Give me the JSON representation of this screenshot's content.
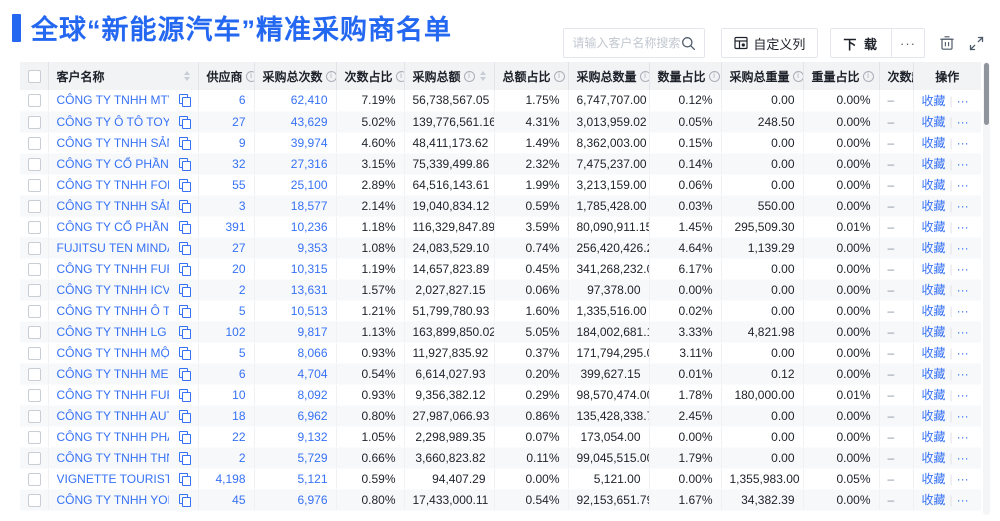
{
  "page": {
    "title": "全球“新能源汽车”精准采购商名单",
    "accent_color": "#2468f2",
    "link_color": "#3671f5"
  },
  "toolbar": {
    "search_placeholder": "请输入客户名称搜索",
    "search_icon": "magnifier-icon",
    "customize_columns_label": "自定义列",
    "customize_columns_icon": "column-settings-icon",
    "download_label": "下 载",
    "more_label": "···",
    "trash_icon": "trash-icon",
    "fullscreen_icon": "fullscreen-expand-icon"
  },
  "table": {
    "columns": [
      {
        "label": "",
        "type": "checkbox"
      },
      {
        "label": "客户名称",
        "info": false,
        "sort": true
      },
      {
        "label": "供应商",
        "info": true,
        "sort": true
      },
      {
        "label": "采购总次数",
        "info": true,
        "sort": true
      },
      {
        "label": "次数占比",
        "info": true,
        "sort": true
      },
      {
        "label": "采购总额",
        "info": true,
        "sort": true
      },
      {
        "label": "总额占比",
        "info": true,
        "sort": true
      },
      {
        "label": "采购总数量",
        "info": true,
        "sort": true
      },
      {
        "label": "数量占比",
        "info": true,
        "sort": true
      },
      {
        "label": "采购总重量",
        "info": true,
        "sort": true
      },
      {
        "label": "重量占比",
        "info": true,
        "sort": true
      },
      {
        "label": "次数趋势",
        "info": false,
        "sort": false
      },
      {
        "label": "操作",
        "info": false,
        "sort": false
      }
    ],
    "actions": {
      "favorite_label": "收藏",
      "more_label": "···"
    },
    "rows": [
      {
        "name": "CÔNG TY TNHH MTV SẢN XUẤ...",
        "suppliers": "6",
        "purchase_count": "62,410",
        "count_pct": "7.19%",
        "amount": "56,738,567.05",
        "amount_pct": "1.75%",
        "quantity": "6,747,707.00",
        "quantity_pct": "0.12%",
        "weight": "0.00",
        "weight_pct": "0.00%",
        "trend": "–"
      },
      {
        "name": "CÔNG TY Ô TÔ TOYOTA VIỆT ...",
        "suppliers": "27",
        "purchase_count": "43,629",
        "count_pct": "5.02%",
        "amount": "139,776,561.16",
        "amount_pct": "4.31%",
        "quantity": "3,013,959.02",
        "quantity_pct": "0.05%",
        "weight": "248.50",
        "weight_pct": "0.00%",
        "trend": "–"
      },
      {
        "name": "CÔNG TY TNHH SẢN XUẤT VÀ ...",
        "suppliers": "9",
        "purchase_count": "39,974",
        "count_pct": "4.60%",
        "amount": "48,411,173.62",
        "amount_pct": "1.49%",
        "quantity": "8,362,003.00",
        "quantity_pct": "0.15%",
        "weight": "0.00",
        "weight_pct": "0.00%",
        "trend": "–"
      },
      {
        "name": "CÔNG TY CỔ PHẦN SẢN XUẤT...",
        "suppliers": "32",
        "purchase_count": "27,316",
        "count_pct": "3.15%",
        "amount": "75,339,499.86",
        "amount_pct": "2.32%",
        "quantity": "7,475,237.00",
        "quantity_pct": "0.14%",
        "weight": "0.00",
        "weight_pct": "0.00%",
        "trend": "–"
      },
      {
        "name": "CÔNG TY TNHH FORD VIỆT NAM",
        "suppliers": "55",
        "purchase_count": "25,100",
        "count_pct": "2.89%",
        "amount": "64,516,143.61",
        "amount_pct": "1.99%",
        "quantity": "3,213,159.00",
        "quantity_pct": "0.06%",
        "weight": "0.00",
        "weight_pct": "0.00%",
        "trend": "–"
      },
      {
        "name": "CÔNG TY TNHH SẢN XUẤT VÀ ...",
        "suppliers": "3",
        "purchase_count": "18,577",
        "count_pct": "2.14%",
        "amount": "19,040,834.12",
        "amount_pct": "0.59%",
        "quantity": "1,785,428.00",
        "quantity_pct": "0.03%",
        "weight": "550.00",
        "weight_pct": "0.00%",
        "trend": "–"
      },
      {
        "name": "CÔNG TY CỔ PHẦN SẢN XUẤT...",
        "suppliers": "391",
        "purchase_count": "10,236",
        "count_pct": "1.18%",
        "amount": "116,329,847.89",
        "amount_pct": "3.59%",
        "quantity": "80,090,911.15",
        "quantity_pct": "1.45%",
        "weight": "295,509.30",
        "weight_pct": "0.01%",
        "trend": "–"
      },
      {
        "name": "FUJITSU TEN MINDA INDIA PVT...",
        "suppliers": "27",
        "purchase_count": "9,353",
        "count_pct": "1.08%",
        "amount": "24,083,529.10",
        "amount_pct": "0.74%",
        "quantity": "256,420,426.29",
        "quantity_pct": "4.64%",
        "weight": "1,139.29",
        "weight_pct": "0.00%",
        "trend": "–"
      },
      {
        "name": "CÔNG TY TNHH FURUKAWA A...",
        "suppliers": "20",
        "purchase_count": "10,315",
        "count_pct": "1.19%",
        "amount": "14,657,823.89",
        "amount_pct": "0.45%",
        "quantity": "341,268,232.00",
        "quantity_pct": "6.17%",
        "weight": "0.00",
        "weight_pct": "0.00%",
        "trend": "–"
      },
      {
        "name": "CÔNG TY TNHH ICV",
        "suppliers": "2",
        "purchase_count": "13,631",
        "count_pct": "1.57%",
        "amount": "2,027,827.15",
        "amount_pct": "0.06%",
        "quantity": "97,378.00",
        "quantity_pct": "0.00%",
        "weight": "0.00",
        "weight_pct": "0.00%",
        "trend": "–"
      },
      {
        "name": "CÔNG TY TNHH Ô TÔ MITSUBI...",
        "suppliers": "5",
        "purchase_count": "10,513",
        "count_pct": "1.21%",
        "amount": "51,799,780.93",
        "amount_pct": "1.60%",
        "quantity": "1,335,516.00",
        "quantity_pct": "0.02%",
        "weight": "0.00",
        "weight_pct": "0.00%",
        "trend": "–"
      },
      {
        "name": "CÔNG TY TNHH LG ELECTRON...",
        "suppliers": "102",
        "purchase_count": "9,817",
        "count_pct": "1.13%",
        "amount": "163,899,850.02",
        "amount_pct": "5.05%",
        "quantity": "184,002,681.15",
        "quantity_pct": "3.33%",
        "weight": "4,821.98",
        "weight_pct": "0.00%",
        "trend": "–"
      },
      {
        "name": "CÔNG TY TNHH MỘT THÀNH V...",
        "suppliers": "5",
        "purchase_count": "8,066",
        "count_pct": "0.93%",
        "amount": "11,927,835.92",
        "amount_pct": "0.37%",
        "quantity": "171,794,295.00",
        "quantity_pct": "3.11%",
        "weight": "0.00",
        "weight_pct": "0.00%",
        "trend": "–"
      },
      {
        "name": "CÔNG TY TNHH MERCEDES–B...",
        "suppliers": "6",
        "purchase_count": "4,704",
        "count_pct": "0.54%",
        "amount": "6,614,027.93",
        "amount_pct": "0.20%",
        "quantity": "399,627.15",
        "quantity_pct": "0.01%",
        "weight": "0.12",
        "weight_pct": "0.00%",
        "trend": "–"
      },
      {
        "name": "CÔNG TY TNHH FURUKAWA A...",
        "suppliers": "10",
        "purchase_count": "8,092",
        "count_pct": "0.93%",
        "amount": "9,356,382.12",
        "amount_pct": "0.29%",
        "quantity": "98,570,474.00",
        "quantity_pct": "1.78%",
        "weight": "180,000.00",
        "weight_pct": "0.01%",
        "trend": "–"
      },
      {
        "name": "CÔNG TY TNHH AUTEL VIỆT N...",
        "suppliers": "18",
        "purchase_count": "6,962",
        "count_pct": "0.80%",
        "amount": "27,987,066.93",
        "amount_pct": "0.86%",
        "quantity": "135,428,338.71",
        "quantity_pct": "2.45%",
        "weight": "0.00",
        "weight_pct": "0.00%",
        "trend": "–"
      },
      {
        "name": "CÔNG TY TNHH PHÂN PHỐI T...",
        "suppliers": "22",
        "purchase_count": "9,132",
        "count_pct": "1.05%",
        "amount": "2,298,989.35",
        "amount_pct": "0.07%",
        "quantity": "173,054.00",
        "quantity_pct": "0.00%",
        "weight": "0.00",
        "weight_pct": "0.00%",
        "trend": "–"
      },
      {
        "name": "CÔNG TY TNHH THN AUTOPAR...",
        "suppliers": "2",
        "purchase_count": "5,729",
        "count_pct": "0.66%",
        "amount": "3,660,823.82",
        "amount_pct": "0.11%",
        "quantity": "99,045,515.00",
        "quantity_pct": "1.79%",
        "weight": "0.00",
        "weight_pct": "0.00%",
        "trend": "–"
      },
      {
        "name": "VIGNETTE TOURISTIQUE G UNI...",
        "suppliers": "4,198",
        "purchase_count": "5,121",
        "count_pct": "0.59%",
        "amount": "94,407.29",
        "amount_pct": "0.00%",
        "quantity": "5,121.00",
        "quantity_pct": "0.00%",
        "weight": "1,355,983.00",
        "weight_pct": "0.05%",
        "trend": "–"
      },
      {
        "name": "CÔNG TY TNHH YOKOWO VIỆT...",
        "suppliers": "45",
        "purchase_count": "6,976",
        "count_pct": "0.80%",
        "amount": "17,433,000.11",
        "count2": "",
        "amount_pct": "0.54%",
        "quantity": "92,153,651.79",
        "quantity_pct": "1.67%",
        "weight": "34,382.39",
        "weight_pct": "0.00%",
        "trend": "–"
      }
    ]
  }
}
